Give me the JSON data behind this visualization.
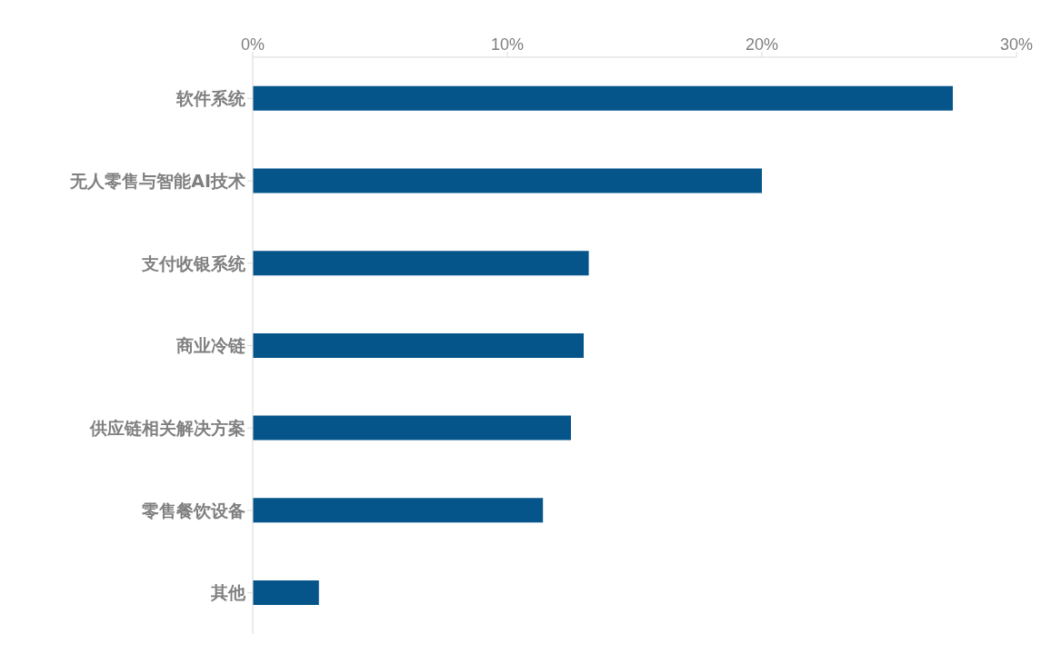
{
  "chart_data": {
    "type": "bar",
    "orientation": "horizontal",
    "categories": [
      "软件系统",
      "无人零售与智能AI技术",
      "支付收银系统",
      "商业冷链",
      "供应链相关解决方案",
      "零售餐饮设备",
      "其他"
    ],
    "values": [
      27.5,
      20.0,
      13.2,
      13.0,
      12.5,
      11.4,
      2.6
    ],
    "color": "#05558a",
    "xlim": [
      0,
      30
    ],
    "xticks": [
      {
        "value": 0,
        "label": "0%"
      },
      {
        "value": 10,
        "label": "10%"
      },
      {
        "value": 20,
        "label": "20%"
      },
      {
        "value": 30,
        "label": "30%"
      }
    ],
    "grid": false,
    "legend": false
  }
}
